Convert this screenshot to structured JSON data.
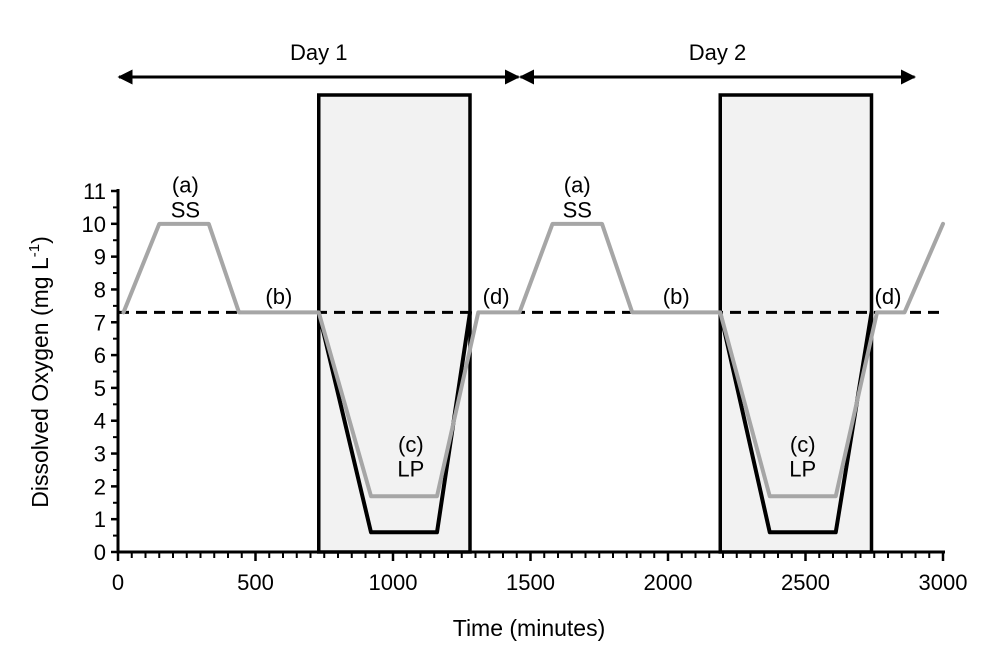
{
  "chart_data": {
    "type": "line",
    "xlabel": "Time (minutes)",
    "ylabel": "Dissolved Oxygen (mg L",
    "ylabel_sup": "-1",
    "ylabel_close": ")",
    "xlim": [
      0,
      3000
    ],
    "ylim": [
      0,
      11
    ],
    "x_ticks": [
      0,
      500,
      1000,
      1500,
      2000,
      2500,
      3000
    ],
    "y_ticks": [
      0,
      1,
      2,
      3,
      4,
      5,
      6,
      7,
      8,
      9,
      10,
      11
    ],
    "grid": false,
    "legend": "none",
    "reference_line": {
      "y": 7.3,
      "style": "dashed",
      "color": "#000000"
    },
    "shaded_regions": [
      {
        "x0": 730,
        "x1": 1280,
        "fill": "#f2f2f2"
      },
      {
        "x0": 2190,
        "x1": 2740,
        "fill": "#f2f2f2"
      }
    ],
    "day_spans": [
      {
        "label": "Day 1",
        "x0": 0,
        "x1": 1460
      },
      {
        "label": "Day 2",
        "x0": 1460,
        "x1": 2900
      }
    ],
    "series": [
      {
        "color": "#000000",
        "width": 4,
        "x": [
          730,
          920,
          1160,
          1280
        ],
        "y": [
          7.3,
          0.6,
          0.6,
          7.3
        ]
      },
      {
        "color": "#000000",
        "width": 4,
        "x": [
          2190,
          2370,
          2610,
          2740
        ],
        "y": [
          7.3,
          0.6,
          0.6,
          7.3
        ]
      },
      {
        "color": "#a6a6a6",
        "width": 4,
        "x": [
          20,
          150,
          330,
          440,
          730,
          920,
          1160,
          1310,
          1460,
          1580,
          1760,
          1870,
          2190,
          2370,
          2610,
          2760,
          2860,
          3000
        ],
        "y": [
          7.3,
          10.0,
          10.0,
          7.3,
          7.3,
          1.7,
          1.7,
          7.3,
          7.3,
          10.0,
          10.0,
          7.3,
          7.3,
          1.7,
          1.7,
          7.3,
          7.3,
          10.0
        ]
      }
    ],
    "annotations": [
      {
        "text": "(a)",
        "x": 245,
        "y": 10.95
      },
      {
        "text": "SS",
        "x": 245,
        "y": 10.2
      },
      {
        "text": "(b)",
        "x": 585,
        "y": 7.55
      },
      {
        "text": "(c)",
        "x": 1065,
        "y": 3.05
      },
      {
        "text": "LP",
        "x": 1065,
        "y": 2.3
      },
      {
        "text": "(d)",
        "x": 1375,
        "y": 7.55
      },
      {
        "text": "(a)",
        "x": 1670,
        "y": 10.95
      },
      {
        "text": "SS",
        "x": 1670,
        "y": 10.2
      },
      {
        "text": "(b)",
        "x": 2030,
        "y": 7.55
      },
      {
        "text": "(c)",
        "x": 2490,
        "y": 3.05
      },
      {
        "text": "LP",
        "x": 2490,
        "y": 2.3
      },
      {
        "text": "(d)",
        "x": 2800,
        "y": 7.55
      }
    ]
  }
}
